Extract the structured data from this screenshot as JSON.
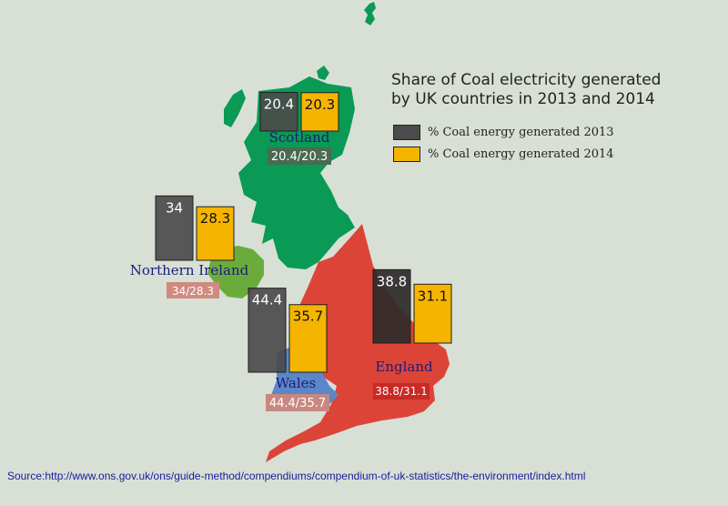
{
  "title_line1": "Share of Coal electricity generated",
  "title_line2": "by UK countries in 2013 and 2014",
  "legend": [
    {
      "label": "% Coal energy generated 2013",
      "color": "#4b4b4b"
    },
    {
      "label": "% Coal energy generated 2014",
      "color": "#f4b400"
    }
  ],
  "source": "Source:http://www.ons.gov.uk/ons/guide-method/compendiums/compendium-of-uk-statistics/the-environment/index.html",
  "colors": {
    "background": "#d8e0d6",
    "scotland": "#0a9a55",
    "northern_ireland": "#6aac3c",
    "wales": "#5b86c8",
    "england": "#dd4438",
    "bar_2013": "#4b4b4b",
    "bar_2014": "#f4b400"
  },
  "chart_data": {
    "type": "bar",
    "categories": [
      "Scotland",
      "Northern Ireland",
      "Wales",
      "England"
    ],
    "series": [
      {
        "name": "% Coal energy generated 2013",
        "values": [
          20.4,
          34,
          44.4,
          38.8
        ]
      },
      {
        "name": "% Coal energy generated 2014",
        "values": [
          20.3,
          28.3,
          35.7,
          31.1
        ]
      }
    ],
    "value_labels": [
      "20.4/20.3",
      "34/28.3",
      "44.4/35.7",
      "38.8/31.1"
    ],
    "ylim": [
      0,
      44.4
    ]
  }
}
